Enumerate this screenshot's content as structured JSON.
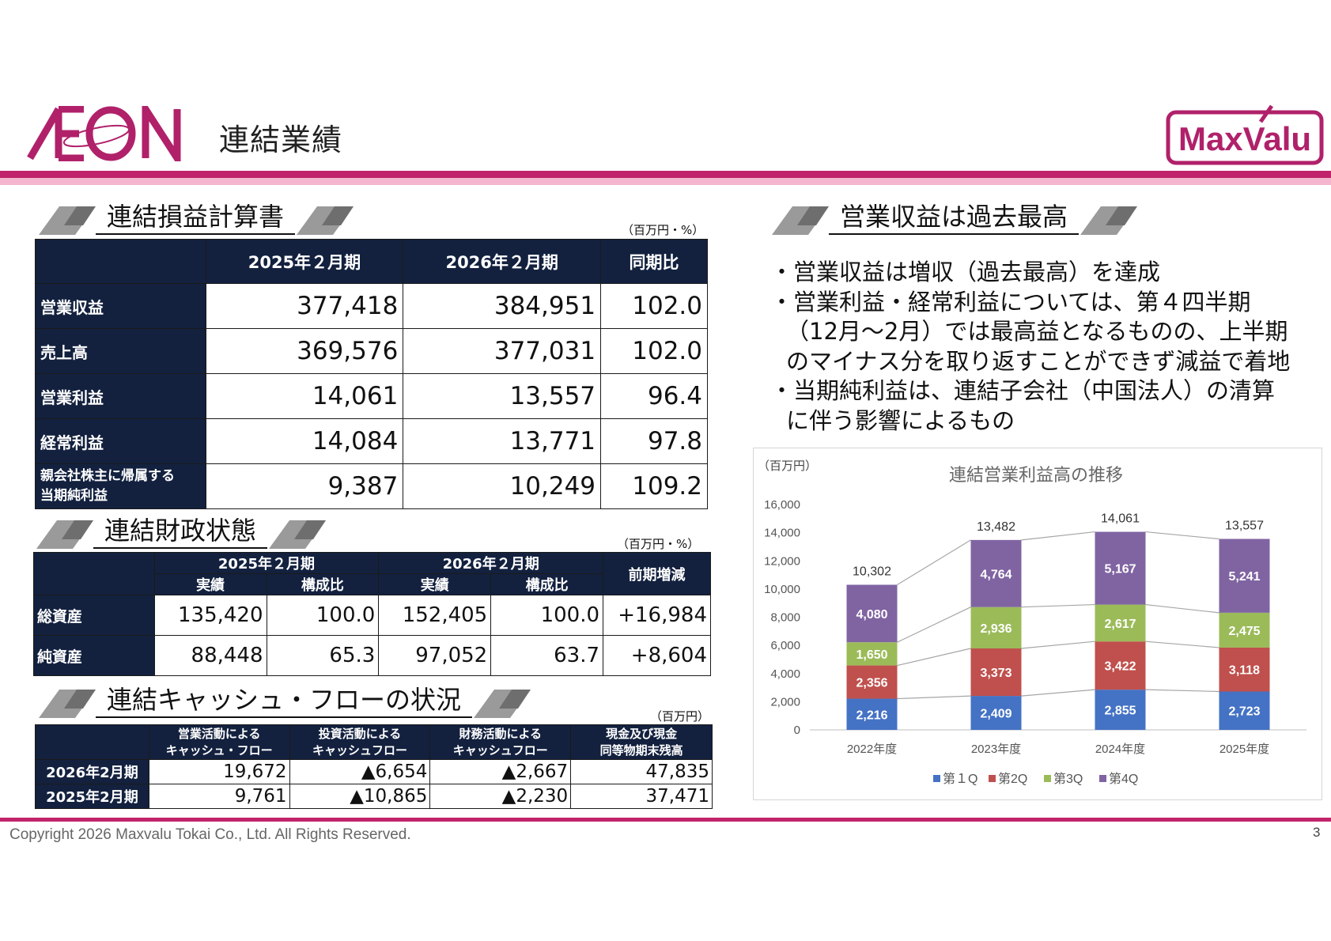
{
  "header": {
    "title": "連結業績",
    "aeon_logo_text": "ÆON",
    "maxvalu_logo_text": "MaxValu"
  },
  "pl": {
    "title": "連結損益計算書",
    "unit": "（百万円・%）",
    "columns": [
      "",
      "2025年２月期",
      "2026年２月期",
      "同期比"
    ],
    "rows": [
      {
        "label": "営業収益",
        "prev": "377,418",
        "curr": "384,951",
        "ratio": "102.0"
      },
      {
        "label": "売上高",
        "prev": "369,576",
        "curr": "377,031",
        "ratio": "102.0"
      },
      {
        "label": "営業利益",
        "prev": "14,061",
        "curr": "13,557",
        "ratio": "96.4"
      },
      {
        "label": "経常利益",
        "prev": "14,084",
        "curr": "13,771",
        "ratio": "97.8"
      },
      {
        "label_line1": "親会社株主に帰属する",
        "label_line2": "当期純利益",
        "prev": "9,387",
        "curr": "10,249",
        "ratio": "109.2"
      }
    ]
  },
  "bs": {
    "title": "連結財政状態",
    "unit": "（百万円・%）",
    "period_prev": "2025年２月期",
    "period_curr": "2026年２月期",
    "change_header": "前期増減",
    "sub_actual": "実績",
    "sub_ratio": "構成比",
    "rows": [
      {
        "label": "総資産",
        "prev_actual": "135,420",
        "prev_ratio": "100.0",
        "curr_actual": "152,405",
        "curr_ratio": "100.0",
        "change": "+16,984"
      },
      {
        "label": "純資産",
        "prev_actual": "88,448",
        "prev_ratio": "65.3",
        "curr_actual": "97,052",
        "curr_ratio": "63.7",
        "change": "+8,604"
      }
    ]
  },
  "cf": {
    "title": "連結キャッシュ・フローの状況",
    "unit": "（百万円）",
    "headers": [
      {
        "l1": "営業活動による",
        "l2": "キャッシュ・フロー"
      },
      {
        "l1": "投資活動による",
        "l2": "キャッシュフロー"
      },
      {
        "l1": "財務活動による",
        "l2": "キャッシュフロー"
      },
      {
        "l1": "現金及び現金",
        "l2": "同等物期末残高"
      }
    ],
    "rows": [
      {
        "label": "2026年2月期",
        "op": "19,672",
        "inv": "▲6,654",
        "fin": "▲2,667",
        "cash": "47,835"
      },
      {
        "label": "2025年2月期",
        "op": "9,761",
        "inv": "▲10,865",
        "fin": "▲2,230",
        "cash": "37,471"
      }
    ]
  },
  "highlights": {
    "title": "営業収益は過去最高",
    "lines": [
      "・営業収益は増収（過去最高）を達成",
      "・営業利益・経常利益については、第４四半期",
      "（12月～2月）では最高益となるものの、上半期",
      "のマイナス分を取り返すことができず減益で着地",
      "・当期純利益は、連結子会社（中国法人）の清算",
      "に伴う影響によるもの"
    ]
  },
  "chart_data": {
    "type": "bar",
    "stacked": true,
    "title": "連結営業利益高の推移",
    "unit_label": "（百万円）",
    "categories": [
      "2022年度",
      "2023年度",
      "2024年度",
      "2025年度"
    ],
    "series": [
      {
        "name": "第１Q",
        "color": "#4472c4",
        "values": [
          2216,
          2409,
          2855,
          2723
        ]
      },
      {
        "name": "第2Q",
        "color": "#c0504d",
        "values": [
          2356,
          3373,
          3422,
          3118
        ]
      },
      {
        "name": "第3Q",
        "color": "#9bbb59",
        "values": [
          1650,
          2936,
          2617,
          2475
        ]
      },
      {
        "name": "第4Q",
        "color": "#8064a2",
        "values": [
          4080,
          4764,
          5167,
          5241
        ]
      }
    ],
    "totals": [
      10302,
      13482,
      14061,
      13557
    ],
    "ylim": [
      0,
      16000
    ],
    "yticks": [
      0,
      2000,
      4000,
      6000,
      8000,
      10000,
      12000,
      14000,
      16000
    ],
    "legend_position": "bottom",
    "grid": false
  },
  "footer": {
    "copyright": "Copyright 2026 Maxvalu Tokai Co., Ltd. All Rights Reserved.",
    "page": "3"
  }
}
